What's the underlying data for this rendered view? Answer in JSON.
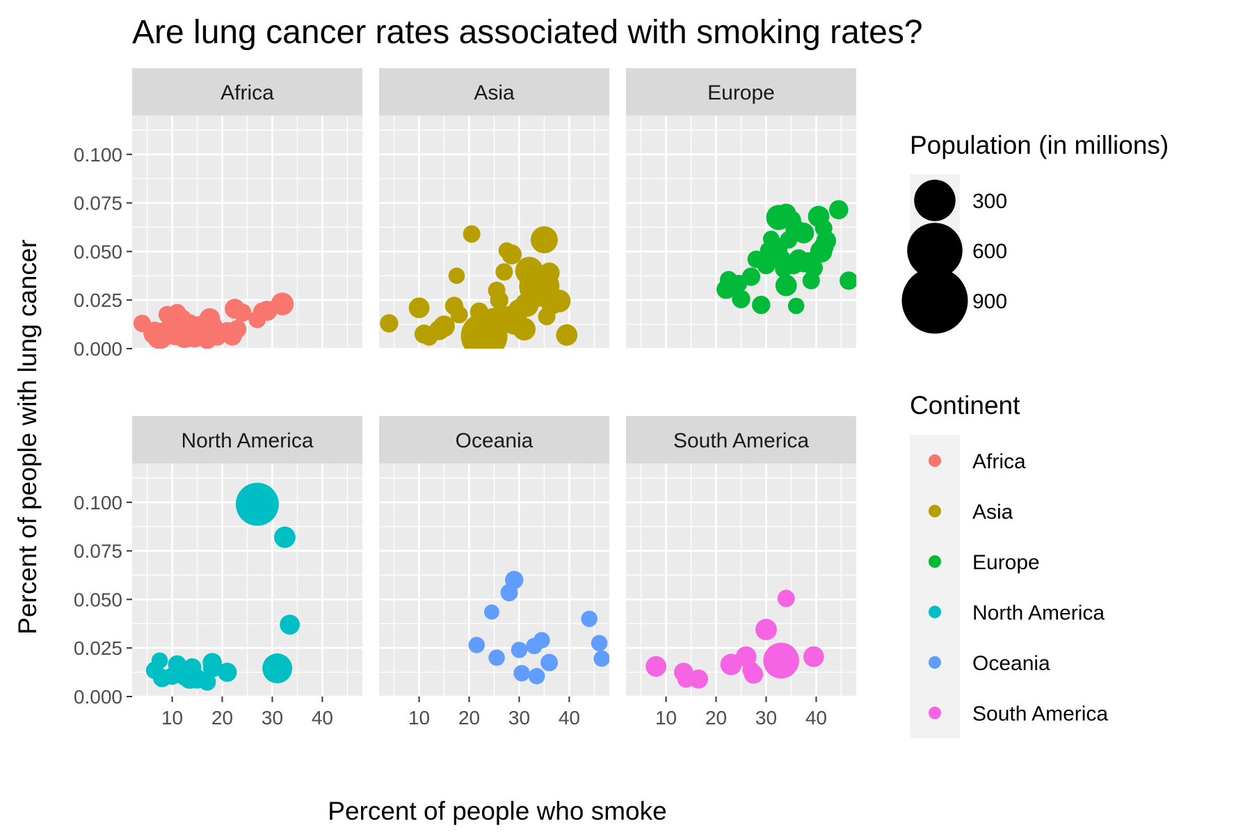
{
  "chart_data": {
    "type": "scatter",
    "title": "Are lung cancer rates associated with smoking rates?",
    "xlabel": "Percent of people who smoke",
    "ylabel": "Percent of people with lung cancer",
    "xlim": [
      2,
      48
    ],
    "ylim": [
      0,
      0.12
    ],
    "x_ticks": [
      "10",
      "20",
      "30",
      "40"
    ],
    "y_ticks": [
      "0.000",
      "0.025",
      "0.050",
      "0.075",
      "0.100"
    ],
    "grid": true,
    "facet_by": "Continent",
    "size_legend": {
      "title": "Population (in millions)",
      "entries": [
        {
          "label": "300",
          "value": 300
        },
        {
          "label": "600",
          "value": 600
        },
        {
          "label": "900",
          "value": 900
        }
      ]
    },
    "color_legend": {
      "title": "Continent",
      "placement": "right"
    },
    "series": [
      {
        "name": "Africa",
        "color": "#F8766D",
        "points": [
          [
            4,
            0.013,
            25
          ],
          [
            6.5,
            0.008,
            60
          ],
          [
            7.5,
            0.0065,
            90
          ],
          [
            8,
            0.006,
            40
          ],
          [
            8.5,
            0.009,
            30
          ],
          [
            9,
            0.0175,
            25
          ],
          [
            10,
            0.008,
            50
          ],
          [
            10.5,
            0.0065,
            30
          ],
          [
            11,
            0.0185,
            25
          ],
          [
            11.5,
            0.012,
            40
          ],
          [
            12,
            0.0155,
            30
          ],
          [
            12.5,
            0.0065,
            70
          ],
          [
            13,
            0.009,
            35
          ],
          [
            13.5,
            0.0125,
            40
          ],
          [
            14,
            0.0075,
            45
          ],
          [
            14.5,
            0.0055,
            35
          ],
          [
            15,
            0.0105,
            30
          ],
          [
            15.5,
            0.0095,
            110
          ],
          [
            16,
            0.006,
            30
          ],
          [
            16.5,
            0.0075,
            40
          ],
          [
            17,
            0.0045,
            30
          ],
          [
            17.5,
            0.0155,
            45
          ],
          [
            18,
            0.012,
            40
          ],
          [
            18.5,
            0.008,
            30
          ],
          [
            19,
            0.0065,
            35
          ],
          [
            20,
            0.0075,
            25
          ],
          [
            21,
            0.009,
            30
          ],
          [
            22,
            0.0065,
            35
          ],
          [
            22.5,
            0.0205,
            40
          ],
          [
            23,
            0.01,
            30
          ],
          [
            24,
            0.0185,
            30
          ],
          [
            27,
            0.015,
            25
          ],
          [
            28,
            0.019,
            30
          ],
          [
            29,
            0.0195,
            40
          ],
          [
            32,
            0.023,
            60
          ]
        ]
      },
      {
        "name": "Asia",
        "color": "#B79F00",
        "points": [
          [
            4,
            0.013,
            30
          ],
          [
            10,
            0.021,
            45
          ],
          [
            11,
            0.0075,
            35
          ],
          [
            12,
            0.006,
            25
          ],
          [
            14,
            0.0095,
            40
          ],
          [
            15,
            0.0115,
            50
          ],
          [
            17,
            0.022,
            30
          ],
          [
            17.5,
            0.0375,
            20
          ],
          [
            18,
            0.0175,
            25
          ],
          [
            20.5,
            0.059,
            25
          ],
          [
            22,
            0.019,
            30
          ],
          [
            23,
            0.0065,
            400
          ],
          [
            24,
            0.012,
            80
          ],
          [
            25,
            0.014,
            100
          ],
          [
            25.5,
            0.03,
            25
          ],
          [
            26,
            0.025,
            30
          ],
          [
            27,
            0.0395,
            25
          ],
          [
            27.5,
            0.0505,
            20
          ],
          [
            28,
            0.0155,
            80
          ],
          [
            28.5,
            0.0485,
            40
          ],
          [
            29,
            0.013,
            60
          ],
          [
            30,
            0.02,
            50
          ],
          [
            31,
            0.01,
            60
          ],
          [
            31.5,
            0.0225,
            70
          ],
          [
            32,
            0.04,
            110
          ],
          [
            33,
            0.0355,
            130
          ],
          [
            34,
            0.032,
            280
          ],
          [
            34.5,
            0.027,
            40
          ],
          [
            35,
            0.056,
            100
          ],
          [
            35.5,
            0.0165,
            25
          ],
          [
            36,
            0.039,
            45
          ],
          [
            36.5,
            0.023,
            50
          ],
          [
            38,
            0.0245,
            60
          ],
          [
            39.5,
            0.007,
            50
          ]
        ]
      },
      {
        "name": "Europe",
        "color": "#00BA38",
        "points": [
          [
            22,
            0.0305,
            35
          ],
          [
            22.5,
            0.0355,
            25
          ],
          [
            24.5,
            0.0335,
            25
          ],
          [
            25,
            0.0255,
            30
          ],
          [
            27,
            0.037,
            30
          ],
          [
            28,
            0.046,
            25
          ],
          [
            29,
            0.0225,
            30
          ],
          [
            30,
            0.043,
            30
          ],
          [
            30.5,
            0.0505,
            25
          ],
          [
            31,
            0.0565,
            20
          ],
          [
            31.5,
            0.047,
            40
          ],
          [
            32,
            0.0515,
            60
          ],
          [
            32.5,
            0.0675,
            80
          ],
          [
            33,
            0.0465,
            30
          ],
          [
            33.5,
            0.041,
            25
          ],
          [
            34,
            0.0325,
            50
          ],
          [
            34,
            0.0695,
            40
          ],
          [
            34.5,
            0.056,
            25
          ],
          [
            35,
            0.066,
            40
          ],
          [
            35.5,
            0.043,
            30
          ],
          [
            36,
            0.0605,
            50
          ],
          [
            36,
            0.022,
            20
          ],
          [
            36.5,
            0.046,
            40
          ],
          [
            37.5,
            0.0595,
            45
          ],
          [
            37.5,
            0.044,
            30
          ],
          [
            38.5,
            0.0445,
            40
          ],
          [
            39,
            0.035,
            25
          ],
          [
            39.5,
            0.0415,
            30
          ],
          [
            40.5,
            0.068,
            50
          ],
          [
            41,
            0.05,
            55
          ],
          [
            41.5,
            0.0525,
            40
          ],
          [
            41.5,
            0.062,
            25
          ],
          [
            42,
            0.0555,
            40
          ],
          [
            44.5,
            0.0715,
            35
          ],
          [
            46.5,
            0.035,
            30
          ]
        ]
      },
      {
        "name": "North America",
        "color": "#00BFC4",
        "points": [
          [
            6.5,
            0.0135,
            25
          ],
          [
            7.5,
            0.0185,
            20
          ],
          [
            8,
            0.0095,
            30
          ],
          [
            10,
            0.0105,
            25
          ],
          [
            11,
            0.0165,
            30
          ],
          [
            11.5,
            0.014,
            40
          ],
          [
            12,
            0.0115,
            30
          ],
          [
            12.5,
            0.0105,
            35
          ],
          [
            13,
            0.013,
            40
          ],
          [
            13.5,
            0.0095,
            50
          ],
          [
            14,
            0.015,
            30
          ],
          [
            15,
            0.009,
            35
          ],
          [
            17,
            0.0075,
            25
          ],
          [
            18,
            0.0175,
            35
          ],
          [
            18,
            0.0145,
            30
          ],
          [
            21,
            0.0125,
            35
          ],
          [
            27,
            0.099,
            330
          ],
          [
            31,
            0.0145,
            130
          ],
          [
            32.5,
            0.082,
            50
          ],
          [
            33.5,
            0.037,
            40
          ]
        ]
      },
      {
        "name": "Oceania",
        "color": "#619CFF",
        "points": [
          [
            21.5,
            0.0265,
            20
          ],
          [
            24.5,
            0.0435,
            15
          ],
          [
            25.5,
            0.02,
            20
          ],
          [
            28,
            0.0535,
            25
          ],
          [
            29,
            0.06,
            30
          ],
          [
            30,
            0.024,
            20
          ],
          [
            30.5,
            0.012,
            20
          ],
          [
            33,
            0.026,
            20
          ],
          [
            33.5,
            0.0105,
            20
          ],
          [
            34.5,
            0.029,
            20
          ],
          [
            36,
            0.0175,
            25
          ],
          [
            44,
            0.04,
            20
          ],
          [
            46,
            0.0275,
            20
          ],
          [
            46.5,
            0.0195,
            20
          ]
        ]
      },
      {
        "name": "South America",
        "color": "#F564E3",
        "points": [
          [
            8,
            0.0155,
            45
          ],
          [
            13.5,
            0.0125,
            35
          ],
          [
            14,
            0.009,
            25
          ],
          [
            16.5,
            0.009,
            35
          ],
          [
            23,
            0.0165,
            50
          ],
          [
            26,
            0.0205,
            45
          ],
          [
            27,
            0.0135,
            25
          ],
          [
            27.5,
            0.0115,
            35
          ],
          [
            30,
            0.0345,
            50
          ],
          [
            33,
            0.0185,
            210
          ],
          [
            34,
            0.0505,
            25
          ],
          [
            39.5,
            0.0205,
            45
          ]
        ]
      }
    ]
  }
}
